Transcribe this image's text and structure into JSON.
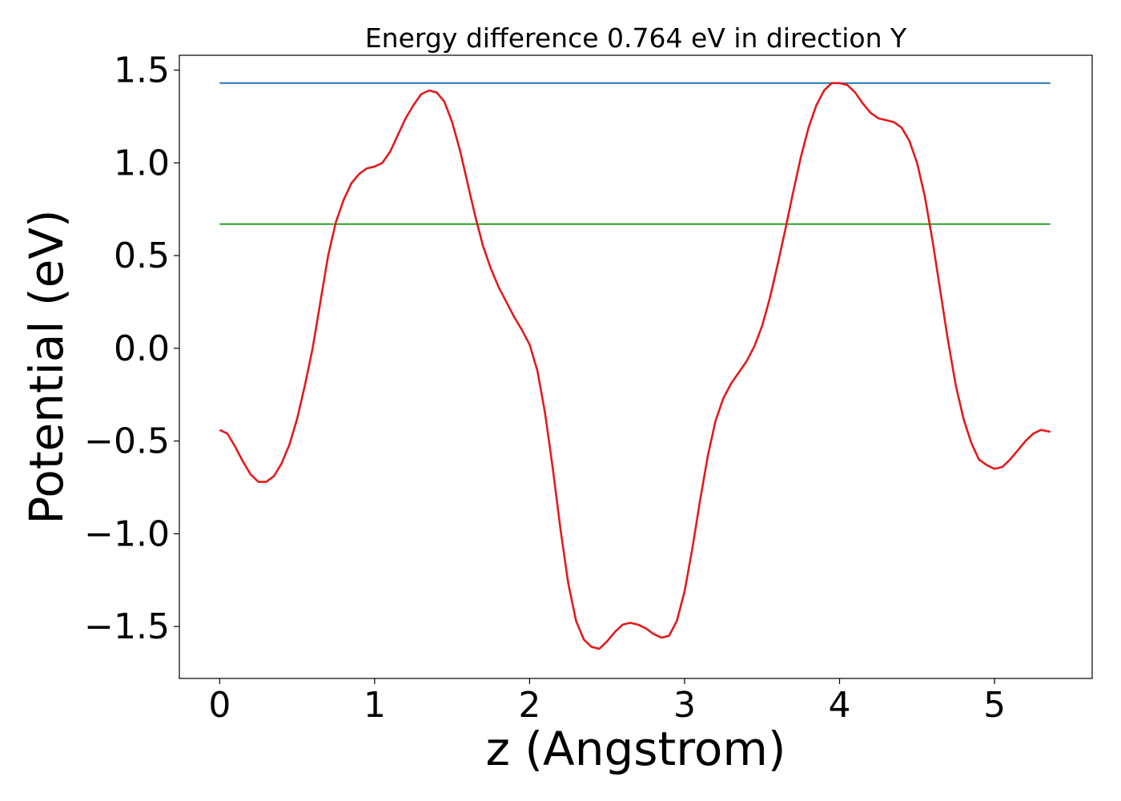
{
  "chart_data": {
    "type": "line",
    "title": "Energy difference 0.764 eV in direction Y",
    "xlabel": "z (Angstrom)",
    "ylabel": "Potential (eV)",
    "xlim": [
      -0.26,
      5.63
    ],
    "ylim": [
      -1.78,
      1.58
    ],
    "xticks": [
      0,
      1,
      2,
      3,
      4,
      5
    ],
    "xtick_labels": [
      "0",
      "1",
      "2",
      "3",
      "4",
      "5"
    ],
    "yticks": [
      1.5,
      1.0,
      0.5,
      0.0,
      -0.5,
      -1.0,
      -1.5
    ],
    "ytick_labels": [
      "1.5",
      "1.0",
      "0.5",
      "0.0",
      "−0.5",
      "−1.0",
      "−1.5"
    ],
    "grid": false,
    "colors": {
      "potential": "#e31a1c",
      "max_line": "#1f77b4",
      "avg_line": "#2ca02c"
    },
    "hlines": [
      {
        "y": 1.43,
        "x": [
          0,
          5.36
        ],
        "color": "#1f77b4"
      },
      {
        "y": 0.67,
        "x": [
          0,
          5.36
        ],
        "color": "#2ca02c"
      }
    ],
    "series": [
      {
        "color": "#e31a1c",
        "x": [
          0.0,
          0.05,
          0.1,
          0.15,
          0.2,
          0.25,
          0.3,
          0.35,
          0.4,
          0.45,
          0.5,
          0.55,
          0.6,
          0.65,
          0.7,
          0.75,
          0.8,
          0.85,
          0.9,
          0.95,
          1.0,
          1.05,
          1.1,
          1.15,
          1.2,
          1.25,
          1.3,
          1.35,
          1.4,
          1.45,
          1.5,
          1.55,
          1.6,
          1.65,
          1.7,
          1.75,
          1.8,
          1.85,
          1.9,
          1.95,
          2.0,
          2.05,
          2.1,
          2.15,
          2.2,
          2.25,
          2.3,
          2.35,
          2.4,
          2.45,
          2.5,
          2.55,
          2.6,
          2.65,
          2.7,
          2.75,
          2.8,
          2.85,
          2.9,
          2.95,
          3.0,
          3.05,
          3.1,
          3.15,
          3.2,
          3.25,
          3.3,
          3.35,
          3.4,
          3.45,
          3.5,
          3.55,
          3.6,
          3.65,
          3.7,
          3.75,
          3.8,
          3.85,
          3.9,
          3.95,
          4.0,
          4.05,
          4.1,
          4.15,
          4.2,
          4.25,
          4.3,
          4.35,
          4.4,
          4.45,
          4.5,
          4.55,
          4.6,
          4.65,
          4.7,
          4.75,
          4.8,
          4.85,
          4.9,
          4.95,
          5.0,
          5.05,
          5.1,
          5.15,
          5.2,
          5.25,
          5.3,
          5.36
        ],
        "y": [
          -0.44,
          -0.46,
          -0.53,
          -0.61,
          -0.68,
          -0.72,
          -0.72,
          -0.69,
          -0.62,
          -0.52,
          -0.38,
          -0.2,
          0.0,
          0.25,
          0.5,
          0.68,
          0.8,
          0.89,
          0.94,
          0.97,
          0.98,
          1.0,
          1.06,
          1.15,
          1.24,
          1.31,
          1.37,
          1.39,
          1.38,
          1.33,
          1.22,
          1.07,
          0.89,
          0.71,
          0.55,
          0.43,
          0.33,
          0.25,
          0.17,
          0.1,
          0.02,
          -0.12,
          -0.35,
          -0.65,
          -0.98,
          -1.27,
          -1.47,
          -1.57,
          -1.61,
          -1.62,
          -1.58,
          -1.53,
          -1.49,
          -1.48,
          -1.49,
          -1.51,
          -1.54,
          -1.56,
          -1.55,
          -1.47,
          -1.31,
          -1.08,
          -0.82,
          -0.58,
          -0.39,
          -0.27,
          -0.19,
          -0.13,
          -0.07,
          0.01,
          0.12,
          0.27,
          0.45,
          0.64,
          0.84,
          1.03,
          1.19,
          1.31,
          1.39,
          1.43,
          1.43,
          1.42,
          1.38,
          1.32,
          1.27,
          1.24,
          1.23,
          1.22,
          1.19,
          1.12,
          1.0,
          0.82,
          0.58,
          0.31,
          0.04,
          -0.2,
          -0.38,
          -0.51,
          -0.6,
          -0.63,
          -0.65,
          -0.64,
          -0.6,
          -0.55,
          -0.5,
          -0.46,
          -0.44,
          -0.45
        ]
      }
    ]
  }
}
